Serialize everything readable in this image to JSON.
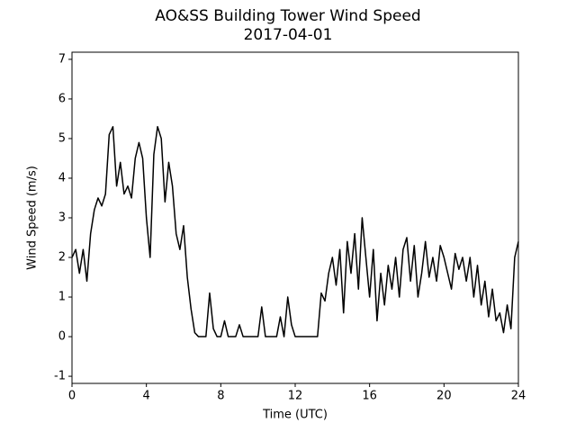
{
  "chart_data": {
    "type": "line",
    "title": "AO&SS Building Tower Wind Speed",
    "subtitle": "2017-04-01",
    "x_label": "Time (UTC)",
    "y_label": "Wind Speed (m/s)",
    "color": "#000000",
    "x": [
      0,
      0.2,
      0.4,
      0.6,
      0.8,
      1,
      1.2,
      1.4,
      1.6,
      1.8,
      2,
      2.2,
      2.4,
      2.6,
      2.8,
      3,
      3.2,
      3.4,
      3.6,
      3.8,
      4,
      4.2,
      4.4,
      4.6,
      4.8,
      5,
      5.2,
      5.4,
      5.6,
      5.8,
      6,
      6.2,
      6.4,
      6.6,
      6.8,
      7,
      7.2,
      7.4,
      7.6,
      7.8,
      8,
      8.2,
      8.4,
      8.6,
      8.8,
      9,
      9.2,
      9.4,
      9.6,
      9.8,
      10,
      10.2,
      10.4,
      10.6,
      10.8,
      11,
      11.2,
      11.4,
      11.6,
      11.8,
      12,
      12.2,
      12.4,
      12.6,
      12.8,
      13,
      13.2,
      13.4,
      13.6,
      13.8,
      14,
      14.2,
      14.4,
      14.6,
      14.8,
      15,
      15.2,
      15.4,
      15.6,
      15.8,
      16,
      16.2,
      16.4,
      16.6,
      16.8,
      17,
      17.2,
      17.4,
      17.6,
      17.8,
      18,
      18.2,
      18.4,
      18.6,
      18.8,
      19,
      19.2,
      19.4,
      19.6,
      19.8,
      20,
      20.2,
      20.4,
      20.6,
      20.8,
      21,
      21.2,
      21.4,
      21.6,
      21.8,
      22,
      22.2,
      22.4,
      22.6,
      22.8,
      23,
      23.2,
      23.4,
      23.6,
      23.8,
      24
    ],
    "values": [
      2.0,
      2.2,
      1.6,
      2.2,
      1.4,
      2.6,
      3.2,
      3.5,
      3.3,
      3.6,
      5.1,
      5.3,
      3.8,
      4.4,
      3.6,
      3.8,
      3.5,
      4.5,
      4.9,
      4.5,
      3.0,
      2.0,
      4.6,
      5.3,
      5.0,
      3.4,
      4.4,
      3.8,
      2.6,
      2.2,
      2.8,
      1.5,
      0.7,
      0.1,
      0,
      0,
      0,
      1.1,
      0.2,
      0,
      0,
      0.4,
      0,
      0,
      0,
      0.3,
      0,
      0,
      0,
      0,
      0,
      0.75,
      0,
      0,
      0,
      0,
      0.5,
      0,
      1.0,
      0.3,
      0,
      0,
      0,
      0,
      0,
      0,
      0,
      1.1,
      0.9,
      1.6,
      2.0,
      1.3,
      2.2,
      0.6,
      2.4,
      1.6,
      2.6,
      1.2,
      3.0,
      2.0,
      1.0,
      2.2,
      0.4,
      1.6,
      0.8,
      1.8,
      1.2,
      2.0,
      1.0,
      2.2,
      2.5,
      1.4,
      2.3,
      1.0,
      1.6,
      2.4,
      1.5,
      2.0,
      1.4,
      2.3,
      2.0,
      1.6,
      1.2,
      2.1,
      1.7,
      2.0,
      1.4,
      2.0,
      1.0,
      1.8,
      0.8,
      1.4,
      0.5,
      1.2,
      0.4,
      0.6,
      0.1,
      0.8,
      0.2,
      2.0,
      2.4
    ],
    "xlim": [
      0,
      24
    ],
    "xticks": [
      0,
      4,
      8,
      12,
      16,
      20,
      24
    ],
    "ylim": [
      -1.18,
      7.18
    ],
    "yticks": [
      -1,
      0,
      1,
      2,
      3,
      4,
      5,
      6,
      7
    ],
    "grid": false
  }
}
